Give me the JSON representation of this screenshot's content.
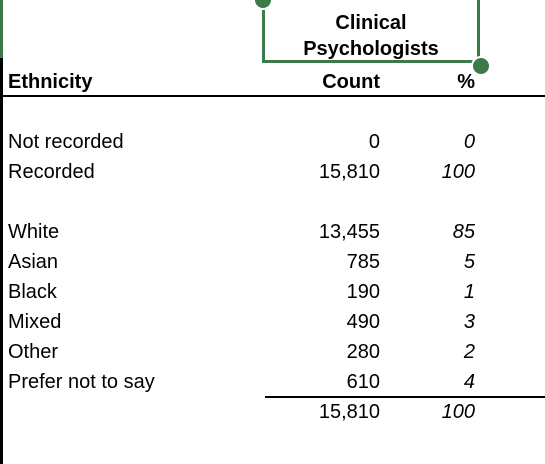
{
  "column_header": {
    "title_line1": "Clinical",
    "title_line2": "Psychologists"
  },
  "headers": {
    "ethnicity": "Ethnicity",
    "count": "Count",
    "percent": "%"
  },
  "rows": [
    {
      "label": "Not recorded",
      "count": "0",
      "percent": "0"
    },
    {
      "label": "Recorded",
      "count": "15,810",
      "percent": "100"
    },
    {
      "label": "White",
      "count": "13,455",
      "percent": "85"
    },
    {
      "label": "Asian",
      "count": "785",
      "percent": "5"
    },
    {
      "label": "Black",
      "count": "190",
      "percent": "1"
    },
    {
      "label": "Mixed",
      "count": "490",
      "percent": "3"
    },
    {
      "label": "Other",
      "count": "280",
      "percent": "2"
    },
    {
      "label": "Prefer not to say",
      "count": "610",
      "percent": "4"
    }
  ],
  "total": {
    "count": "15,810",
    "percent": "100"
  },
  "colors": {
    "selection": "#3d7a4a"
  }
}
